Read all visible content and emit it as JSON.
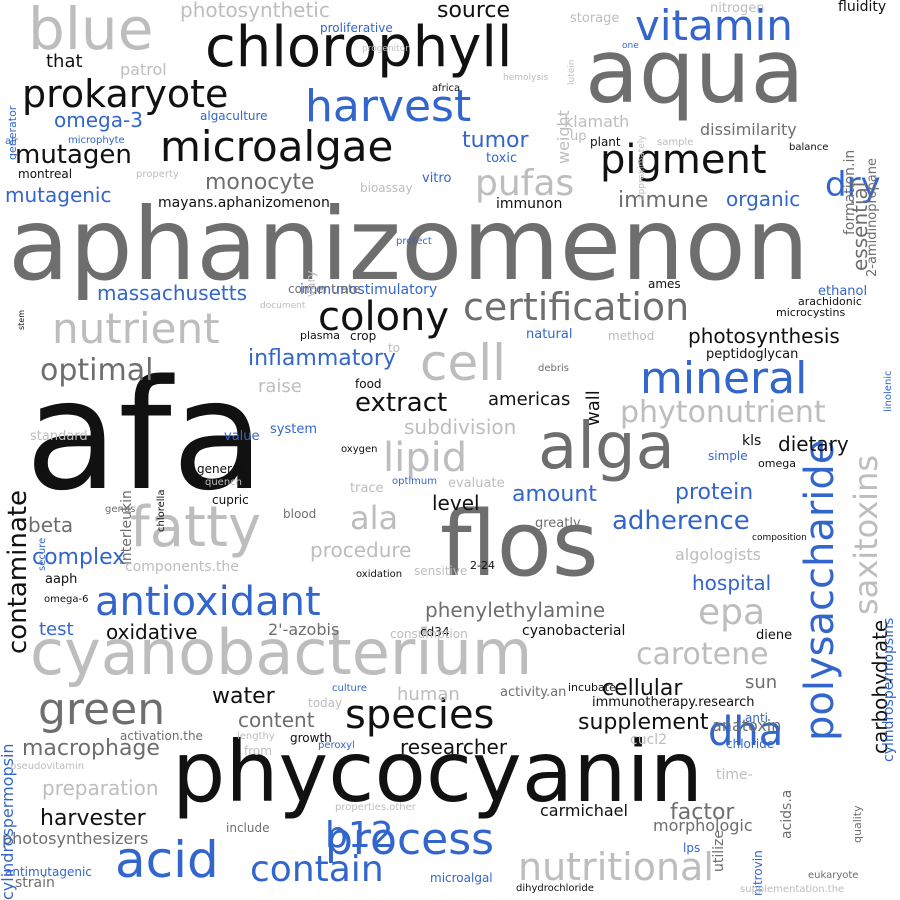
{
  "palette": {
    "black": "#111111",
    "darkgray": "#6e6e6e",
    "lightgray": "#bdbdbd",
    "blue": "#3366cc"
  },
  "words": [
    "afa",
    "aphanizomenon",
    "aqua",
    "phycocyanin",
    "flos",
    "alga",
    "cyanobacterium",
    "chlorophyll",
    "blue",
    "fatty",
    "microalgae",
    "prokaryote",
    "harvest",
    "vitamin",
    "pigment",
    "polysaccharide",
    "acid",
    "species",
    "nutrient",
    "cell",
    "green",
    "antioxidant",
    "certification",
    "colony",
    "mineral",
    "saxitoxins",
    "process",
    "nutritional",
    "contain",
    "b12",
    "lipid",
    "dha",
    "pufas",
    "mutagen",
    "epa",
    "extract",
    "dry",
    "phytonutrient",
    "carotene",
    "optimal",
    "contaminate",
    "ala",
    "adherence",
    "carbohydrate",
    "supplement",
    "protein",
    "inflammatory",
    "photosynthesis",
    "source",
    "omega-3",
    "massachusetts",
    "monocyte",
    "immune",
    "tumor",
    "researcher",
    "amount",
    "mutagenic",
    "phenylethylamine",
    "macrophage",
    "water",
    "content",
    "factor",
    "cellular",
    "hospital",
    "complex",
    "oxidative",
    "organic",
    "dietary",
    "harvester",
    "procedure",
    "level",
    "beta",
    "photosynthetic",
    "subdivision",
    "raise",
    "preparation",
    "essential",
    "that",
    "americas",
    "test",
    "dissimilarity",
    "immunostimulatory",
    "mayans.aphanizomenon",
    "photosynthesizers",
    "algologists",
    "sun",
    "morphologic",
    "2'-azobis",
    "human",
    "anatoxin",
    "cyanobacterial",
    "aaph",
    "weight",
    "wall",
    "klamath",
    "cylindrospermopsin",
    "fluidity",
    "nitrogen",
    "storage",
    "patrol",
    "proliferative",
    "algaculture",
    "immunon",
    "plant",
    "peptidoglycan",
    "ethanol",
    "arachidonic",
    "microcystins",
    "ames",
    "kls",
    "simple",
    "omega",
    "time-",
    "carmichael",
    "interleukin",
    "components.the",
    "activation.the",
    "include",
    "cucl2",
    "anti",
    "chloride",
    "2-24",
    "cd34",
    "utilize",
    "nitrovin",
    "lps",
    "strain",
    "antimutagenic",
    "microalgal",
    "dihydrochloride",
    "eukaryote",
    "supplementation.the",
    "growth",
    "peroxyl",
    "today",
    "lengthy",
    "from",
    "pseudovitamin",
    "consumption",
    "sensitive",
    "greatly",
    "composition",
    "general",
    "cupric",
    "blood",
    "genus",
    "secure",
    "oxidation",
    "omega-6",
    "quench",
    "chlorella",
    "oxygen",
    "trace",
    "optimum",
    "evaluate",
    "standard",
    "value",
    "system",
    "natural",
    "to",
    "crop",
    "plasma",
    "food",
    "debris",
    "method",
    "linolenic",
    "stem",
    "document",
    "concentrate",
    "vary",
    "protect",
    "air",
    "microphyte",
    "generator",
    "montreal",
    "property",
    "toxic",
    "vitro",
    "bioassay",
    "balance",
    "sample",
    "up",
    "africa",
    "progenitor",
    "hemolysis",
    "one",
    "lutein",
    "approximately",
    "formation.in",
    "2-amidinopropane",
    "acids.a",
    "quality",
    "incubate",
    "immunotherapy.research",
    "activity.an",
    "culture",
    "properties.other",
    "diene",
    "cylindrospermopsins"
  ]
}
